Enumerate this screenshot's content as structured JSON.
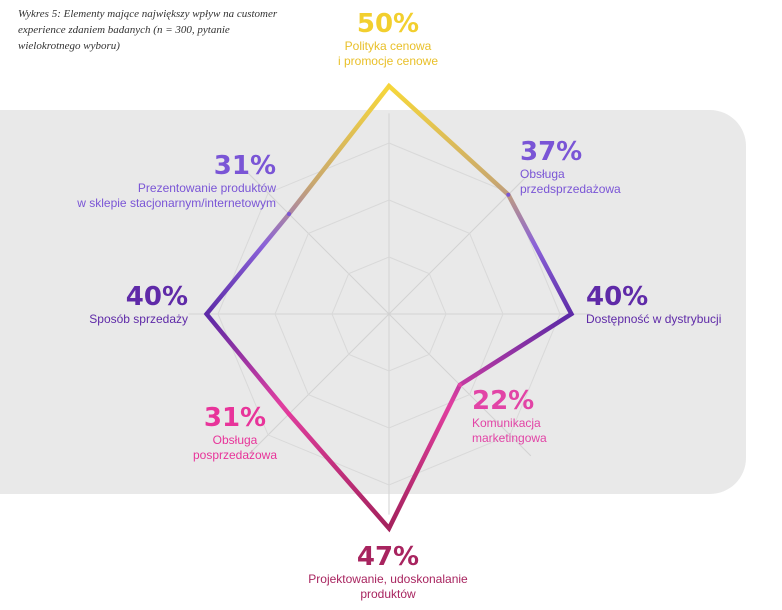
{
  "caption": "Wykres 5: Elementy mające największy wpływ na customer experience zdaniem badanych (n = 300, pytanie wielokrotnego wyboru)",
  "chart_data": {
    "type": "radar",
    "title": "Wykres 5: Elementy mające największy wpływ na customer experience zdaniem badanych (n = 300, pytanie wielokrotnego wyboru)",
    "unit": "%",
    "rmax": 50,
    "grid": true,
    "categories": [
      "Polityka cenowa i promocje cenowe",
      "Obsługa przedsprzedażowa",
      "Dostępność w dystrybucji",
      "Komunikacja marketingowa",
      "Projektowanie, udoskonalanie produktów",
      "Obsługa posprzedażowa",
      "Sposób sprzedaży",
      "Prezentowanie produktów w sklepie stacjonarnym/internetowym"
    ],
    "values": [
      50,
      37,
      40,
      22,
      47,
      31,
      40,
      31
    ],
    "point_colors": [
      "#f5d33b",
      "#7a55d6",
      "#5f2aa8",
      "#e244a6",
      "#a8245f",
      "#e8349a",
      "#5f2aa8",
      "#7a55d6"
    ]
  },
  "labels": {
    "p0": {
      "pct": "50%",
      "line1": "Polityka cenowa",
      "line2": "i promocje cenowe"
    },
    "p1": {
      "pct": "37%",
      "line1": "Obsługa",
      "line2": "przedsprzedażowa"
    },
    "p2": {
      "pct": "40%",
      "line1": "Dostępność w dystrybucji"
    },
    "p3": {
      "pct": "22%",
      "line1": "Komunikacja",
      "line2": "marketingowa"
    },
    "p4": {
      "pct": "47%",
      "line1": "Projektowanie, udoskonalanie",
      "line2": "produktów"
    },
    "p5": {
      "pct": "31%",
      "line1": "Obsługa",
      "line2": "posprzedażowa"
    },
    "p6": {
      "pct": "40%",
      "line1": "Sposób sprzedaży"
    },
    "p7": {
      "pct": "31%",
      "line1": "Prezentowanie produktów",
      "line2": "w sklepie stacjonarnym/internetowym"
    }
  }
}
